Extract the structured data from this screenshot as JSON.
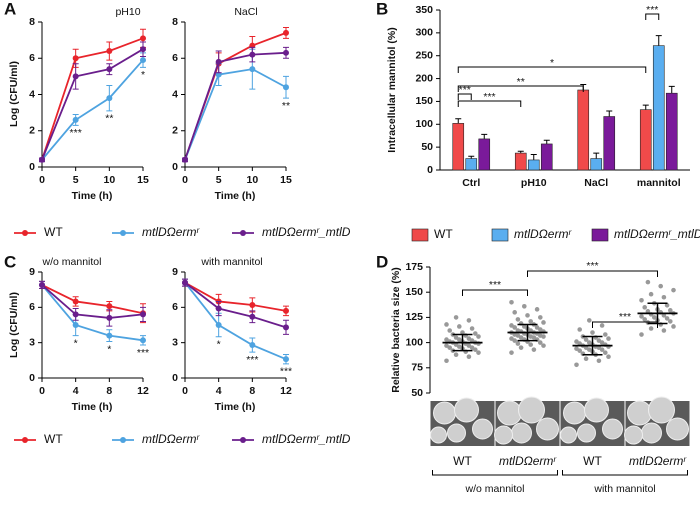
{
  "panels": [
    "A",
    "B",
    "C",
    "D"
  ],
  "chart_data": [
    {
      "type": "line",
      "title": "pH10",
      "ylabel": "Log (CFU/ml)",
      "xlabel": "Time (h)",
      "x": [
        0,
        5,
        10,
        15
      ],
      "xlim": [
        0,
        15
      ],
      "xticks": [
        0,
        5,
        10,
        15
      ],
      "ylim": [
        0,
        8
      ],
      "yticks": [
        0,
        2,
        4,
        6,
        8
      ],
      "series": [
        {
          "name": "WT",
          "color": "#e8242b",
          "values": [
            0.4,
            6.0,
            6.4,
            7.1
          ],
          "errors": [
            0.1,
            0.5,
            0.5,
            0.5
          ]
        },
        {
          "name": "mtlDΩermʳ",
          "color": "#4ea3e0",
          "values": [
            0.4,
            2.6,
            3.8,
            5.9
          ],
          "errors": [
            0.1,
            0.3,
            0.7,
            0.4
          ],
          "significance": [
            null,
            "***",
            "**",
            "*"
          ]
        },
        {
          "name": "mtlDΩermʳ_mtlD",
          "color": "#6a1e8c",
          "values": [
            0.4,
            5.0,
            5.4,
            6.5
          ],
          "errors": [
            0.1,
            0.7,
            0.3,
            0.4
          ]
        }
      ]
    },
    {
      "type": "line",
      "title": "NaCl",
      "xlabel": "Time (h)",
      "x": [
        0,
        5,
        10,
        15
      ],
      "xlim": [
        0,
        15
      ],
      "xticks": [
        0,
        5,
        10,
        15
      ],
      "ylim": [
        0,
        8
      ],
      "yticks": [
        0,
        2,
        4,
        6,
        8
      ],
      "series": [
        {
          "color": "#e8242b",
          "values": [
            0.4,
            5.7,
            6.7,
            7.4
          ],
          "errors": [
            0.1,
            0.6,
            0.5,
            0.3
          ]
        },
        {
          "color": "#4ea3e0",
          "values": [
            0.4,
            5.1,
            5.4,
            4.4
          ],
          "errors": [
            0.1,
            0.6,
            1.1,
            0.6
          ],
          "significance": [
            null,
            null,
            null,
            "**"
          ]
        },
        {
          "color": "#6a1e8c",
          "values": [
            0.4,
            5.8,
            6.2,
            6.3
          ],
          "errors": [
            0.1,
            0.6,
            0.4,
            0.3
          ]
        }
      ]
    },
    {
      "type": "bar",
      "ylabel": "Intracellular mannitol (%)",
      "categories": [
        "Ctrl",
        "pH10",
        "NaCl",
        "mannitol"
      ],
      "ylim": [
        0,
        350
      ],
      "yticks": [
        0,
        50,
        100,
        150,
        200,
        250,
        300,
        350
      ],
      "series": [
        {
          "name": "WT",
          "color": "#f04a4a",
          "values": [
            102,
            37,
            175,
            132
          ],
          "errors": [
            10,
            4,
            12,
            10
          ]
        },
        {
          "name": "mtlDΩermʳ",
          "color": "#5aaef0",
          "values": [
            25,
            22,
            25,
            272
          ],
          "errors": [
            5,
            12,
            12,
            22
          ]
        },
        {
          "name": "mtlDΩermʳ_mtlD",
          "color": "#7a1a9a",
          "values": [
            68,
            57,
            117,
            168
          ],
          "errors": [
            10,
            8,
            12,
            15
          ]
        }
      ],
      "significance": [
        "***",
        "***",
        "**",
        "*",
        "***"
      ]
    },
    {
      "type": "line",
      "title": "w/o mannitol",
      "ylabel": "Log (CFU/ml)",
      "xlabel": "Time (h)",
      "x": [
        0,
        4,
        8,
        12
      ],
      "xlim": [
        0,
        12
      ],
      "xticks": [
        0,
        4,
        8,
        12
      ],
      "ylim": [
        0,
        9
      ],
      "yticks": [
        0,
        3,
        6,
        9
      ],
      "series": [
        {
          "name": "WT",
          "color": "#e8242b",
          "values": [
            7.9,
            6.5,
            6.1,
            5.5
          ],
          "errors": [
            0.3,
            0.4,
            0.4,
            0.8
          ]
        },
        {
          "name": "mtlDΩermʳ",
          "color": "#4ea3e0",
          "values": [
            7.9,
            4.5,
            3.6,
            3.2
          ],
          "errors": [
            0.3,
            0.9,
            0.5,
            0.4
          ],
          "significance": [
            null,
            "*",
            "*",
            "***"
          ]
        },
        {
          "name": "mtlDΩermʳ_mtlD",
          "color": "#6a1e8c",
          "values": [
            7.9,
            5.4,
            5.1,
            5.4
          ],
          "errors": [
            0.3,
            0.5,
            0.7,
            0.6
          ]
        }
      ]
    },
    {
      "type": "line",
      "title": "with mannitol",
      "xlabel": "Time (h)",
      "x": [
        0,
        4,
        8,
        12
      ],
      "xlim": [
        0,
        12
      ],
      "xticks": [
        0,
        4,
        8,
        12
      ],
      "ylim": [
        0,
        9
      ],
      "yticks": [
        0,
        3,
        6,
        9
      ],
      "series": [
        {
          "color": "#e8242b",
          "values": [
            8.1,
            6.5,
            6.2,
            5.7
          ],
          "errors": [
            0.3,
            0.6,
            0.6,
            0.4
          ]
        },
        {
          "color": "#4ea3e0",
          "values": [
            8.1,
            4.5,
            2.8,
            1.6
          ],
          "errors": [
            0.3,
            1.0,
            0.6,
            0.4
          ],
          "significance": [
            null,
            "*",
            "***",
            "***"
          ]
        },
        {
          "color": "#6a1e8c",
          "values": [
            8.1,
            5.9,
            5.2,
            4.3
          ],
          "errors": [
            0.3,
            0.6,
            0.5,
            0.6
          ]
        }
      ]
    },
    {
      "type": "dot",
      "ylabel": "Relative bacteria size (%)",
      "categories": [
        "WT",
        "mtlDΩermʳ",
        "WT",
        "mtlDΩermʳ"
      ],
      "groups": [
        "w/o mannitol",
        "with mannitol"
      ],
      "ylim": [
        50,
        175
      ],
      "yticks": [
        50,
        75,
        100,
        125,
        150,
        175
      ],
      "values": [
        100,
        110,
        97,
        129
      ],
      "errors": [
        8,
        8,
        9,
        10
      ],
      "color": "#999999",
      "points": [
        [
          82,
          86,
          88,
          90,
          91,
          92,
          93,
          94,
          95,
          95,
          96,
          97,
          97,
          98,
          99,
          99,
          100,
          100,
          101,
          101,
          102,
          103,
          103,
          104,
          105,
          106,
          107,
          108,
          109,
          110,
          112,
          114,
          116,
          118,
          122,
          125
        ],
        [
          90,
          93,
          95,
          97,
          98,
          99,
          100,
          101,
          102,
          103,
          103,
          104,
          105,
          105,
          106,
          106,
          107,
          107,
          108,
          108,
          109,
          109,
          110,
          110,
          111,
          111,
          112,
          112,
          113,
          114,
          115,
          115,
          116,
          117,
          118,
          119,
          120,
          121,
          123,
          125,
          127,
          130,
          133,
          136,
          140
        ],
        [
          78,
          82,
          84,
          86,
          88,
          89,
          90,
          91,
          92,
          93,
          93,
          94,
          95,
          95,
          96,
          96,
          97,
          98,
          98,
          99,
          100,
          100,
          101,
          102,
          103,
          104,
          105,
          106,
          108,
          110,
          113,
          117,
          122
        ],
        [
          108,
          112,
          114,
          116,
          118,
          120,
          121,
          122,
          123,
          124,
          125,
          126,
          127,
          128,
          129,
          130,
          131,
          132,
          133,
          135,
          137,
          139,
          142,
          145,
          148,
          152,
          156,
          160
        ]
      ],
      "significance": [
        "***",
        "***",
        "***"
      ]
    }
  ]
}
